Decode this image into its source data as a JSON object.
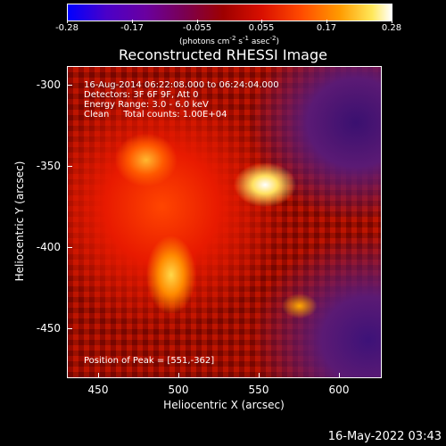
{
  "colorbar": {
    "ticks": [
      "-0.28",
      "-0.17",
      "-0.055",
      "0.055",
      "0.17",
      "0.28"
    ],
    "units_prefix": "(photons cm",
    "units_exp1": "-2",
    "units_mid1": " s",
    "units_exp2": "-1",
    "units_mid2": " asec",
    "units_exp3": "-2",
    "units_suffix": ")",
    "colormap": [
      "#0000ff",
      "#6a00a0",
      "#9e0000",
      "#ff4a00",
      "#ffe85a",
      "#ffffff"
    ]
  },
  "title": "Reconstructed RHESSI Image",
  "info": {
    "line1": "16-Aug-2014 06:22:08.000 to 06:24:04.000",
    "line2": "Detectors: 3F 6F 9F, Att 0",
    "line3": "Energy Range: 3.0 - 6.0 keV",
    "line4": "Clean     Total counts: 1.00E+04",
    "peak": "Position of Peak = [551,-362]"
  },
  "axes": {
    "xlabel": "Heliocentric X (arcsec)",
    "ylabel": "Heliocentric Y (arcsec)",
    "xticks": [
      "450",
      "500",
      "550",
      "600"
    ],
    "yticks": [
      "-300",
      "-350",
      "-400",
      "-450"
    ]
  },
  "timestamp": "16-May-2022 03:43"
}
